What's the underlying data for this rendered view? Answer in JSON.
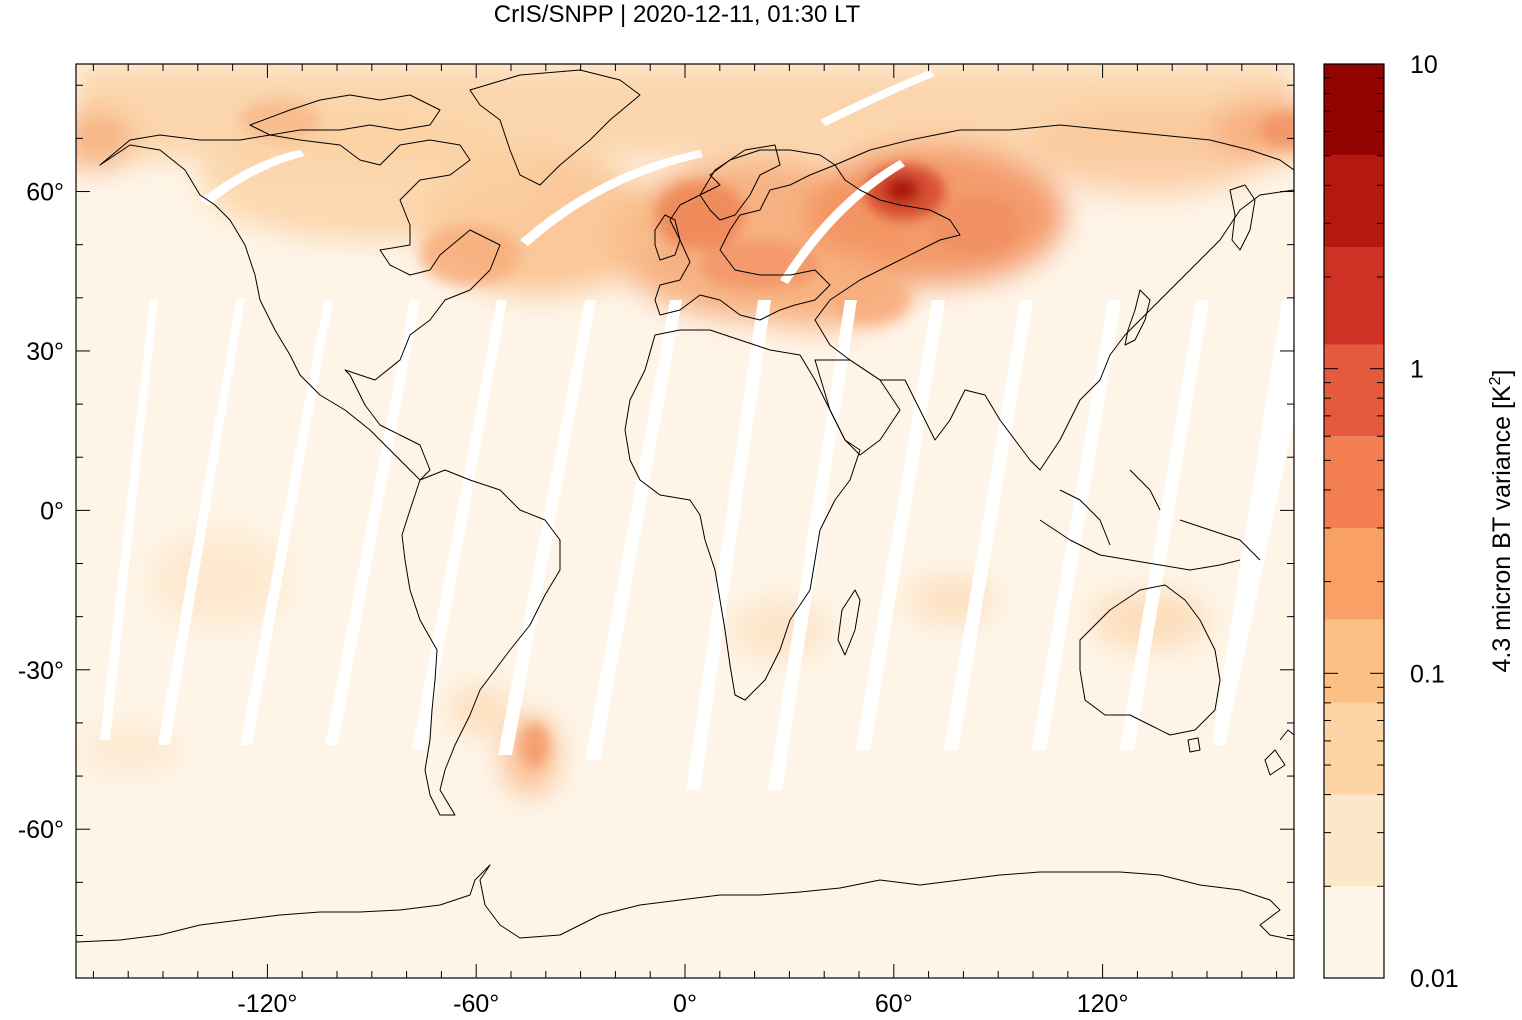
{
  "title": "CrIS/SNPP | 2020-12-11, 01:30 LT",
  "map": {
    "projection": "equirectangular",
    "lon_range": [
      -175,
      175
    ],
    "lat_range": [
      -88,
      84
    ],
    "x_ticks": [
      {
        "value": -120,
        "label": "-120°"
      },
      {
        "value": -60,
        "label": "-60°"
      },
      {
        "value": 0,
        "label": "0°"
      },
      {
        "value": 60,
        "label": "60°"
      },
      {
        "value": 120,
        "label": "120°"
      }
    ],
    "y_ticks": [
      {
        "value": 60,
        "label": "60°"
      },
      {
        "value": 30,
        "label": "30°"
      },
      {
        "value": 0,
        "label": "0°"
      },
      {
        "value": -30,
        "label": "-30°"
      },
      {
        "value": -60,
        "label": "-60°"
      }
    ],
    "background_color": "#fef5e8",
    "gap_color": "#ffffff",
    "coastline_color": "#000000"
  },
  "colorbar": {
    "label": "4.3 micron BT variance [K²]",
    "label_text": "4.3 micron BT variance [K",
    "label_sup": "2",
    "label_end": "]",
    "scale": "log",
    "range": [
      0.01,
      10
    ],
    "tick_labels": [
      {
        "value": 10,
        "label": "10"
      },
      {
        "value": 1,
        "label": "1"
      },
      {
        "value": 0.1,
        "label": "0.1"
      },
      {
        "value": 0.01,
        "label": "0.01"
      }
    ],
    "levels": [
      0.01,
      0.02,
      0.04,
      0.08,
      0.15,
      0.3,
      0.6,
      1.2,
      2.5,
      5,
      10
    ],
    "colors": [
      "#fef5e8",
      "#fde7c9",
      "#fdd4a4",
      "#fcbf84",
      "#f9a067",
      "#f27e52",
      "#e55a3e",
      "#cf3125",
      "#b5180f",
      "#930401"
    ]
  }
}
